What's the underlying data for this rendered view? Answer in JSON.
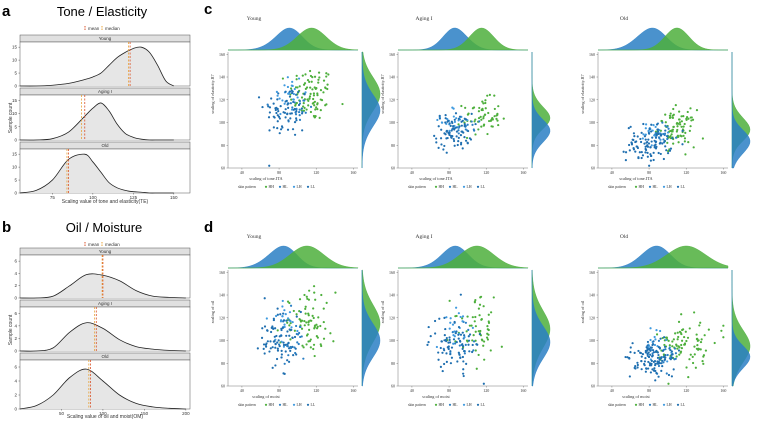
{
  "colors": {
    "hh": "#4daf3c",
    "hl": "#2a7fc4",
    "lh": "#3f9adf",
    "ll": "#1f6fb0",
    "mean_line": "#d9532b",
    "median_line": "#e8a33a",
    "density_fill": "#e6e6e6",
    "strip": "#e0e0e0"
  },
  "panel_a": {
    "letter": "a",
    "title": "Tone / Elasticity",
    "legend": {
      "mean": "mean",
      "median": "median"
    },
    "xlabel": "Scaling value of tone and elasticity(TE)",
    "ylabel": "Sample count",
    "xticks": [
      "75",
      "100",
      "125",
      "150"
    ],
    "facets": [
      {
        "name": "Young",
        "yticks": [
          "0",
          "5",
          "10",
          "15"
        ]
      },
      {
        "name": "Aging I",
        "yticks": [
          "0",
          "5",
          "10",
          "15"
        ]
      },
      {
        "name": "Old",
        "yticks": [
          "0",
          "5",
          "10",
          "15"
        ]
      }
    ]
  },
  "panel_b": {
    "letter": "b",
    "title": "Oil / Moisture",
    "legend": {
      "mean": "mean",
      "median": "median"
    },
    "xlabel": "Scaling value of oil and moist(OM)",
    "ylabel": "Sample count",
    "xticks": [
      "50",
      "100",
      "150",
      "200"
    ],
    "facets": [
      {
        "name": "Young",
        "yticks": [
          "0",
          "2",
          "4",
          "6"
        ]
      },
      {
        "name": "Aging I",
        "yticks": [
          "0",
          "2",
          "4",
          "6"
        ]
      },
      {
        "name": "Old",
        "yticks": [
          "0",
          "2",
          "4",
          "6"
        ]
      }
    ]
  },
  "panel_c": {
    "letter": "c",
    "xlabel": "scaling of tone.ITA",
    "ylabel": "scaling of elasticity.R7",
    "xticks": [
      "40",
      "80",
      "120",
      "160"
    ],
    "yticks": [
      "60",
      "80",
      "100",
      "120",
      "140",
      "160"
    ],
    "legend_title": "skin pattern",
    "legend_items": [
      "HH",
      "HL",
      "LH",
      "LL"
    ],
    "plots": [
      {
        "name": "Young"
      },
      {
        "name": "Aging I"
      },
      {
        "name": "Old"
      }
    ]
  },
  "panel_d": {
    "letter": "d",
    "xlabel": "scaling of moist",
    "ylabel": "scaling of oil",
    "xticks": [
      "40",
      "80",
      "120",
      "160"
    ],
    "yticks": [
      "60",
      "80",
      "100",
      "120",
      "140",
      "160"
    ],
    "legend_title": "skin pattern",
    "legend_items": [
      "HH",
      "HL",
      "LH",
      "LL"
    ],
    "plots": [
      {
        "name": "Young"
      },
      {
        "name": "Aging I"
      },
      {
        "name": "Old"
      }
    ]
  },
  "chart_data": [
    {
      "type": "area",
      "panel": "a",
      "title": "Tone / Elasticity",
      "xlabel": "Scaling value of tone and elasticity(TE)",
      "ylabel": "Sample count",
      "xlim": [
        55,
        160
      ],
      "ylim": [
        0,
        17
      ],
      "x": [
        55,
        65,
        75,
        85,
        95,
        100,
        105,
        110,
        115,
        120,
        125,
        130,
        135,
        140,
        145,
        150
      ],
      "series": [
        {
          "name": "Young",
          "values": [
            0,
            0,
            0.3,
            1,
            2.5,
            3.5,
            5,
            8,
            11,
            13,
            14.5,
            15,
            13,
            8,
            2,
            0
          ],
          "mean": 123,
          "median": 122
        },
        {
          "name": "Aging I",
          "values": [
            0,
            0,
            0.5,
            3,
            9,
            12,
            14,
            11,
            6,
            2.5,
            1,
            0.3,
            0,
            0,
            0,
            0
          ],
          "mean": 95,
          "median": 93
        },
        {
          "name": "Old",
          "values": [
            0,
            1,
            5,
            13,
            15,
            12,
            8,
            4,
            2,
            1,
            0.5,
            0.3,
            0,
            0,
            0,
            0
          ],
          "mean": 85,
          "median": 84
        }
      ]
    },
    {
      "type": "area",
      "panel": "b",
      "title": "Oil / Moisture",
      "xlabel": "Scaling value of oil and moist(OM)",
      "ylabel": "Sample count",
      "xlim": [
        0,
        205
      ],
      "ylim": [
        0,
        7
      ],
      "x": [
        0,
        20,
        40,
        60,
        80,
        100,
        120,
        140,
        160,
        180,
        200
      ],
      "series": [
        {
          "name": "Young",
          "values": [
            0,
            0,
            0.3,
            2,
            3.8,
            3.7,
            2.8,
            1.2,
            0.3,
            0.1,
            0
          ],
          "mean": 100,
          "median": 99
        },
        {
          "name": "Aging I",
          "values": [
            0,
            0,
            0.5,
            3,
            4.5,
            3.6,
            1.8,
            0.7,
            0.3,
            0.1,
            0
          ],
          "mean": 92,
          "median": 90
        },
        {
          "name": "Old",
          "values": [
            0,
            0.5,
            2,
            4.5,
            5.7,
            4,
            2,
            0.8,
            0.3,
            0.1,
            0
          ],
          "mean": 85,
          "median": 83
        }
      ]
    },
    {
      "type": "scatter",
      "panel": "c",
      "xlabel": "scaling of tone.ITA",
      "ylabel": "scaling of elasticity.R7",
      "xlim": [
        25,
        165
      ],
      "ylim": [
        60,
        162
      ],
      "legend_title": "skin pattern",
      "series": [
        {
          "name": "HH",
          "plot": "Young",
          "n": 90,
          "cx": 115,
          "cy": 125,
          "sx": 12,
          "sy": 12
        },
        {
          "name": "HL",
          "plot": "Young",
          "n": 20,
          "cx": 100,
          "cy": 112,
          "sx": 8,
          "sy": 8
        },
        {
          "name": "LH",
          "plot": "Young",
          "n": 25,
          "cx": 90,
          "cy": 125,
          "sx": 8,
          "sy": 10
        },
        {
          "name": "LL",
          "plot": "Young",
          "n": 70,
          "cx": 88,
          "cy": 110,
          "sx": 12,
          "sy": 12
        },
        {
          "name": "HH",
          "plot": "Aging I",
          "n": 60,
          "cx": 115,
          "cy": 105,
          "sx": 10,
          "sy": 8
        },
        {
          "name": "HL",
          "plot": "Aging I",
          "n": 15,
          "cx": 100,
          "cy": 95,
          "sx": 8,
          "sy": 6
        },
        {
          "name": "LH",
          "plot": "Aging I",
          "n": 20,
          "cx": 85,
          "cy": 102,
          "sx": 7,
          "sy": 6
        },
        {
          "name": "LL",
          "plot": "Aging I",
          "n": 80,
          "cx": 85,
          "cy": 92,
          "sx": 10,
          "sy": 8
        },
        {
          "name": "HH",
          "plot": "Old",
          "n": 90,
          "cx": 110,
          "cy": 95,
          "sx": 10,
          "sy": 8
        },
        {
          "name": "HL",
          "plot": "Old",
          "n": 20,
          "cx": 95,
          "cy": 88,
          "sx": 8,
          "sy": 6
        },
        {
          "name": "LH",
          "plot": "Old",
          "n": 20,
          "cx": 85,
          "cy": 90,
          "sx": 8,
          "sy": 6
        },
        {
          "name": "LL",
          "plot": "Old",
          "n": 100,
          "cx": 80,
          "cy": 82,
          "sx": 12,
          "sy": 8
        }
      ]
    },
    {
      "type": "scatter",
      "panel": "d",
      "xlabel": "scaling of moist",
      "ylabel": "scaling of oil",
      "xlim": [
        25,
        165
      ],
      "ylim": [
        60,
        162
      ],
      "legend_title": "skin pattern",
      "series": [
        {
          "name": "HH",
          "plot": "Young",
          "n": 80,
          "cx": 110,
          "cy": 115,
          "sx": 14,
          "sy": 14
        },
        {
          "name": "HL",
          "plot": "Young",
          "n": 25,
          "cx": 95,
          "cy": 100,
          "sx": 8,
          "sy": 10
        },
        {
          "name": "LH",
          "plot": "Young",
          "n": 25,
          "cx": 85,
          "cy": 115,
          "sx": 8,
          "sy": 10
        },
        {
          "name": "LL",
          "plot": "Young",
          "n": 80,
          "cx": 80,
          "cy": 100,
          "sx": 12,
          "sy": 12
        },
        {
          "name": "HH",
          "plot": "Aging I",
          "n": 60,
          "cx": 110,
          "cy": 110,
          "sx": 14,
          "sy": 14
        },
        {
          "name": "HL",
          "plot": "Aging I",
          "n": 15,
          "cx": 95,
          "cy": 100,
          "sx": 8,
          "sy": 8
        },
        {
          "name": "LH",
          "plot": "Aging I",
          "n": 20,
          "cx": 85,
          "cy": 110,
          "sx": 8,
          "sy": 10
        },
        {
          "name": "LL",
          "plot": "Aging I",
          "n": 80,
          "cx": 85,
          "cy": 98,
          "sx": 12,
          "sy": 12
        },
        {
          "name": "HH",
          "plot": "Old",
          "n": 90,
          "cx": 120,
          "cy": 95,
          "sx": 16,
          "sy": 12
        },
        {
          "name": "HL",
          "plot": "Old",
          "n": 20,
          "cx": 100,
          "cy": 88,
          "sx": 8,
          "sy": 6
        },
        {
          "name": "LH",
          "plot": "Old",
          "n": 20,
          "cx": 90,
          "cy": 95,
          "sx": 8,
          "sy": 8
        },
        {
          "name": "LL",
          "plot": "Old",
          "n": 120,
          "cx": 85,
          "cy": 85,
          "sx": 12,
          "sy": 8
        }
      ]
    }
  ]
}
